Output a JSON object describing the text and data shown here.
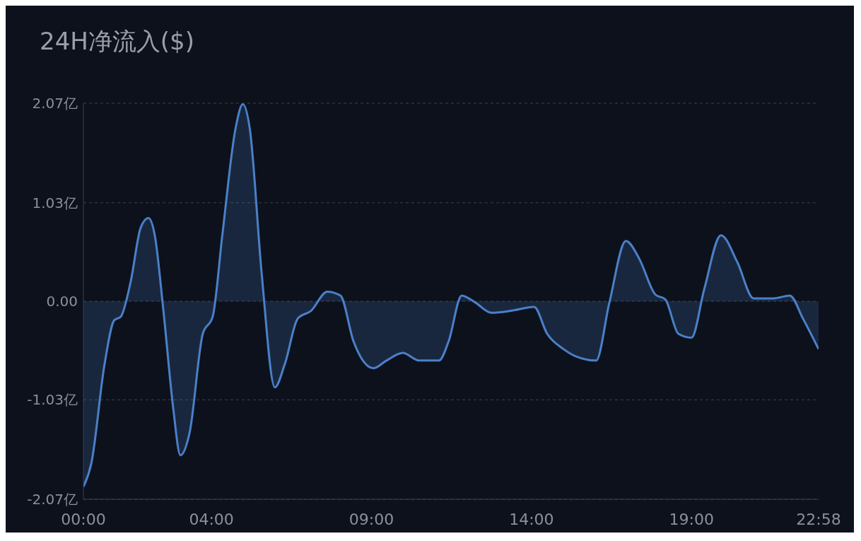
{
  "chart_data": {
    "type": "area",
    "title": "24H净流入($)",
    "x": [
      0,
      0.25,
      0.66,
      0.96,
      1.17,
      1.48,
      1.79,
      2.03,
      2.23,
      2.5,
      2.81,
      3.03,
      3.32,
      3.73,
      4.04,
      4.34,
      4.75,
      4.98,
      5.2,
      5.57,
      5.98,
      6.29,
      6.7,
      7.11,
      7.62,
      8.03,
      8.44,
      9.06,
      9.47,
      9.98,
      10.49,
      11.11,
      11.41,
      11.82,
      12.23,
      12.75,
      13.36,
      14.08,
      14.49,
      15,
      15.41,
      16.02,
      16.43,
      16.95,
      17.36,
      17.87,
      18.18,
      18.59,
      19,
      19.4,
      19.92,
      20.43,
      20.94,
      21.56,
      22.07,
      22.48,
      22.97
    ],
    "series": [
      {
        "color": "#4a80c8",
        "values": [
          -1.94,
          -1.69,
          -0.66,
          -0.2,
          -0.16,
          0.21,
          0.77,
          0.87,
          0.69,
          -0.1,
          -1.13,
          -1.61,
          -1.37,
          -0.34,
          -0.16,
          0.69,
          1.8,
          2.06,
          1.8,
          0.29,
          -0.9,
          -0.66,
          -0.18,
          -0.1,
          0.1,
          0.06,
          -0.42,
          -0.7,
          -0.62,
          -0.54,
          -0.62,
          -0.62,
          -0.42,
          0.06,
          -0.01,
          -0.12,
          -0.1,
          -0.06,
          -0.34,
          -0.5,
          -0.58,
          -0.62,
          -0.02,
          0.63,
          0.45,
          0.07,
          0.02,
          -0.34,
          -0.38,
          0.13,
          0.69,
          0.41,
          0.03,
          0.03,
          0.06,
          -0.18,
          -0.5
        ]
      }
    ],
    "xlim": [
      0,
      22.97
    ],
    "xticks": [
      {
        "value": 0,
        "label": "00:00"
      },
      {
        "value": 4,
        "label": "04:00"
      },
      {
        "value": 9,
        "label": "09:00"
      },
      {
        "value": 14,
        "label": "14:00"
      },
      {
        "value": 19,
        "label": "19:00"
      },
      {
        "value": 22.97,
        "label": "22:58"
      }
    ],
    "ylim": [
      -2.07,
      2.07
    ],
    "yticks": [
      {
        "value": -2.07,
        "label": "-2.07亿"
      },
      {
        "value": -1.03,
        "label": "-1.03亿"
      },
      {
        "value": 0,
        "label": "0.00"
      },
      {
        "value": 1.03,
        "label": "1.03亿"
      },
      {
        "value": 2.07,
        "label": "2.07亿"
      }
    ],
    "grid": "y"
  }
}
